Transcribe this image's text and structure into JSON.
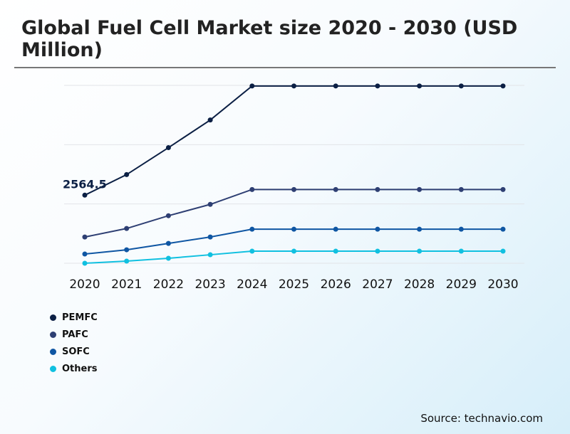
{
  "title": "Global Fuel Cell Market size 2020 - 2030 (USD Million)",
  "source": "Source: technavio.com",
  "chart_data": {
    "type": "line",
    "title": "Global Fuel Cell Market size 2020 - 2030 (USD Million)",
    "x": [
      "2020",
      "2021",
      "2022",
      "2023",
      "2024",
      "2025",
      "2026",
      "2027",
      "2028",
      "2029",
      "2030"
    ],
    "ylim": [
      0,
      6700
    ],
    "grid": true,
    "legend": "bottom-left",
    "annotations": [
      {
        "series": "PEMFC",
        "x": "2020",
        "text": "2564.5"
      }
    ],
    "series": [
      {
        "name": "PEMFC",
        "color": "#0b1f44",
        "values": [
          2564.5,
          3339,
          4354,
          5396,
          6678,
          6678,
          6678,
          6678,
          6678,
          6678,
          6678
        ]
      },
      {
        "name": "PAFC",
        "color": "#2e3f73",
        "values": [
          988,
          1309,
          1790,
          2217,
          2778,
          2778,
          2778,
          2778,
          2778,
          2778,
          2778
        ]
      },
      {
        "name": "SOFC",
        "color": "#0f56a3",
        "values": [
          347,
          507,
          748,
          988,
          1282,
          1282,
          1282,
          1282,
          1282,
          1282,
          1282
        ]
      },
      {
        "name": "Others",
        "color": "#10c0e0",
        "values": [
          0,
          80,
          187,
          320,
          454,
          454,
          454,
          454,
          454,
          454,
          454
        ]
      }
    ]
  }
}
